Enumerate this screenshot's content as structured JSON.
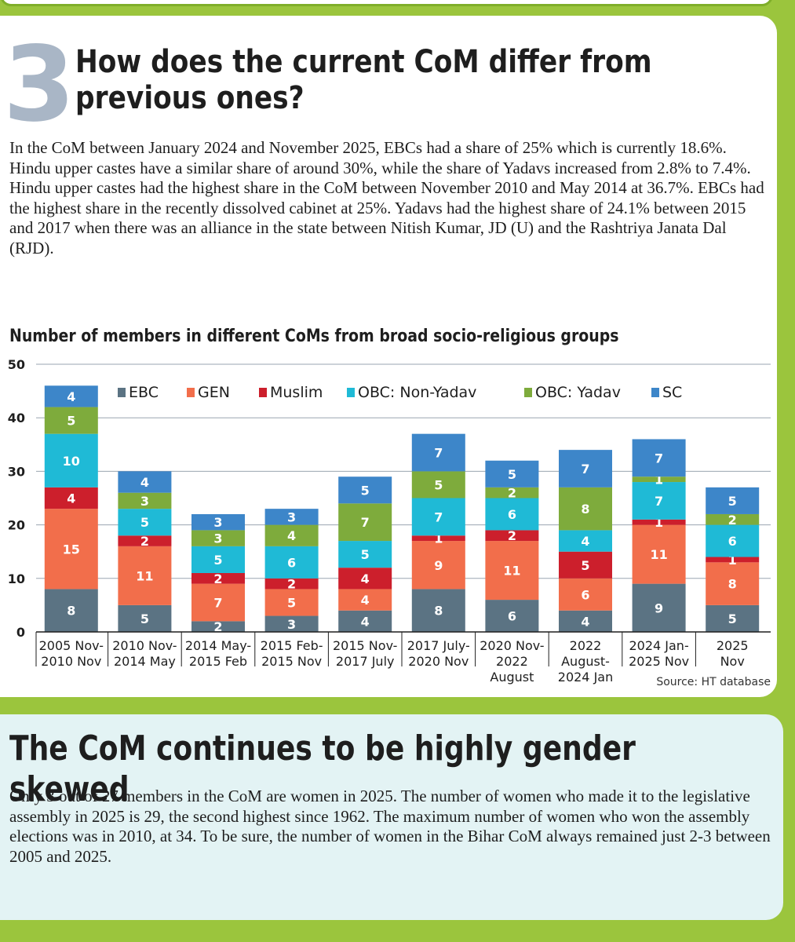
{
  "section_number": "3",
  "heading": "How does the current CoM differ from previous ones?",
  "intro": "In the CoM between January 2024 and November 2025, EBCs had a share of 25% which is currently 18.6%. Hindu upper castes have a similar share of around 30%, while the share of Yadavs increased from 2.8% to 7.4%. Hindu upper castes had the highest share in the CoM between November 2010 and May 2014 at 36.7%. EBCs had the highest share in the recently dissolved cabinet at 25%. Yadavs had the highest share of 24.1% between 2015 and 2017 when there was an alliance in the state between Nitish Kumar, JD (U) and the Rashtriya Janata Dal (RJD).",
  "chart_data": {
    "type": "bar",
    "stacked": true,
    "title": "Number of members in different CoMs from broad socio-religious groups",
    "source": "Source: HT database",
    "ylim": [
      0,
      50
    ],
    "yticks": [
      0,
      10,
      20,
      30,
      40,
      50
    ],
    "grid": true,
    "legend_position": "top",
    "categories": [
      [
        "2005 Nov-",
        "2010 Nov"
      ],
      [
        "2010 Nov-",
        "2014 May"
      ],
      [
        "2014 May-",
        "2015 Feb"
      ],
      [
        "2015 Feb-",
        "2015 Nov"
      ],
      [
        "2015 Nov-",
        "2017 July"
      ],
      [
        "2017 July-",
        "2020 Nov"
      ],
      [
        "2020 Nov-",
        "2022",
        "August"
      ],
      [
        "2022",
        "August-",
        "2024 Jan"
      ],
      [
        "2024 Jan-",
        "2025 Nov"
      ],
      [
        "2025",
        "Nov"
      ]
    ],
    "series": [
      {
        "name": "EBC",
        "color": "#5b7383",
        "values": [
          8,
          5,
          2,
          3,
          4,
          8,
          6,
          4,
          9,
          5
        ]
      },
      {
        "name": "GEN",
        "color": "#f26e4b",
        "values": [
          15,
          11,
          7,
          5,
          4,
          9,
          11,
          6,
          11,
          8
        ]
      },
      {
        "name": "Muslim",
        "color": "#cc1f2c",
        "values": [
          4,
          2,
          2,
          2,
          4,
          1,
          2,
          5,
          1,
          1
        ]
      },
      {
        "name": "OBC: Non-Yadav",
        "color": "#1fbad6",
        "values": [
          10,
          5,
          5,
          6,
          5,
          7,
          6,
          4,
          7,
          6
        ]
      },
      {
        "name": "OBC: Yadav",
        "color": "#7eab3c",
        "values": [
          5,
          3,
          3,
          4,
          7,
          5,
          2,
          8,
          1,
          2
        ]
      },
      {
        "name": "SC",
        "color": "#3d86c9",
        "values": [
          4,
          4,
          3,
          3,
          5,
          7,
          5,
          7,
          7,
          5
        ]
      }
    ]
  },
  "section2": {
    "heading": "The CoM continues to be highly gender skewed",
    "paragraph": "Only 3 out of 27 members in the CoM are women in 2025. The number of women who made it to the legislative assembly in 2025 is 29, the second highest since 1962. The maximum number of women who won the assembly elections was in 2010, at 34. To be sure, the number of women in the Bihar CoM always remained just 2-3 between 2005 and 2025."
  }
}
